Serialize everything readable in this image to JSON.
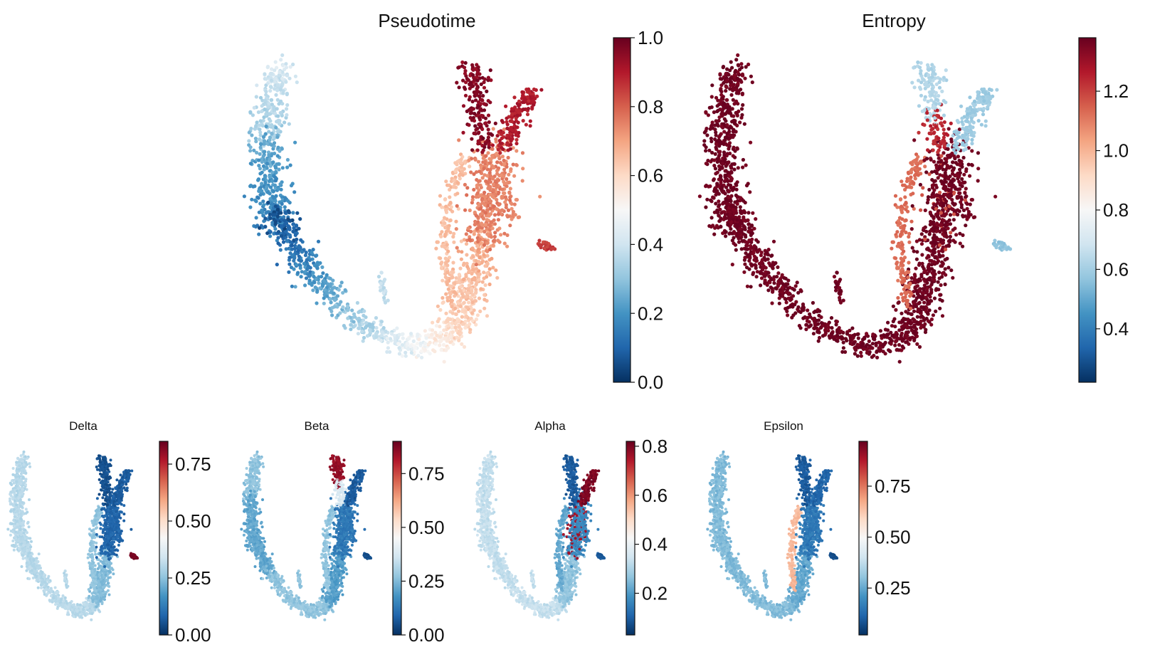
{
  "figure": {
    "description_free": true
  },
  "chart_data": [
    {
      "type": "scatter",
      "title": "Pseudotime",
      "colormap": "RdBu_r",
      "colorbar": {
        "min": 0.0,
        "max": 1.0,
        "ticks": [
          0.0,
          0.2,
          0.4,
          0.6,
          0.8,
          1.0
        ],
        "tick_labels": [
          "0.0",
          "0.2",
          "0.4",
          "0.6",
          "0.8",
          "1.0"
        ]
      },
      "value_pattern": "gradient along U trajectory: left arm tip ~0.35, left base ~0.15, bottom ~0.5, right arm ~0.7, right tips ~0.95, right nub ~0.85"
    },
    {
      "type": "scatter",
      "title": "Entropy",
      "colormap": "RdBu_r",
      "colorbar": {
        "min": 0.22,
        "max": 1.38,
        "ticks": [
          0.4,
          0.6,
          0.8,
          1.0,
          1.2
        ],
        "tick_labels": [
          "0.4",
          "0.6",
          "0.8",
          "1.0",
          "1.2"
        ]
      },
      "value_pattern": "mostly ~1.38 (dark red); right inner branch ~1.05; upper-left right tip ~0.65; upper-right tip ~0.6; nub ~0.6"
    },
    {
      "type": "scatter",
      "title": "Delta",
      "colormap": "RdBu_r",
      "colorbar": {
        "min": 0.0,
        "max": 0.85,
        "ticks": [
          0.0,
          0.25,
          0.5,
          0.75
        ],
        "tick_labels": [
          "0.00",
          "0.25",
          "0.50",
          "0.75"
        ]
      },
      "value_pattern": "background ~0.35; right arm ~0.08; nub ~0.85"
    },
    {
      "type": "scatter",
      "title": "Beta",
      "colormap": "RdBu_r",
      "colorbar": {
        "min": 0.0,
        "max": 0.9,
        "ticks": [
          0.0,
          0.25,
          0.5,
          0.75
        ],
        "tick_labels": [
          "0.00",
          "0.25",
          "0.50",
          "0.75"
        ]
      },
      "value_pattern": "background ~0.28; right arm ~0.12; left-top tip of right arm ~0.9"
    },
    {
      "type": "scatter",
      "title": "Alpha",
      "colormap": "RdBu_r",
      "colorbar": {
        "min": 0.03,
        "max": 0.82,
        "ticks": [
          0.2,
          0.4,
          0.6,
          0.8
        ],
        "tick_labels": [
          "0.2",
          "0.4",
          "0.6",
          "0.8"
        ]
      },
      "value_pattern": "background ~0.35; right arm ~0.1; upper-right tip ~0.82"
    },
    {
      "type": "scatter",
      "title": "Epsilon",
      "colormap": "RdBu_r",
      "colorbar": {
        "min": 0.02,
        "max": 0.97,
        "ticks": [
          0.25,
          0.5,
          0.75
        ],
        "tick_labels": [
          "0.25",
          "0.50",
          "0.75"
        ]
      },
      "value_pattern": "background ~0.3; right arm ~0.1; inner branch ~0.65"
    }
  ]
}
